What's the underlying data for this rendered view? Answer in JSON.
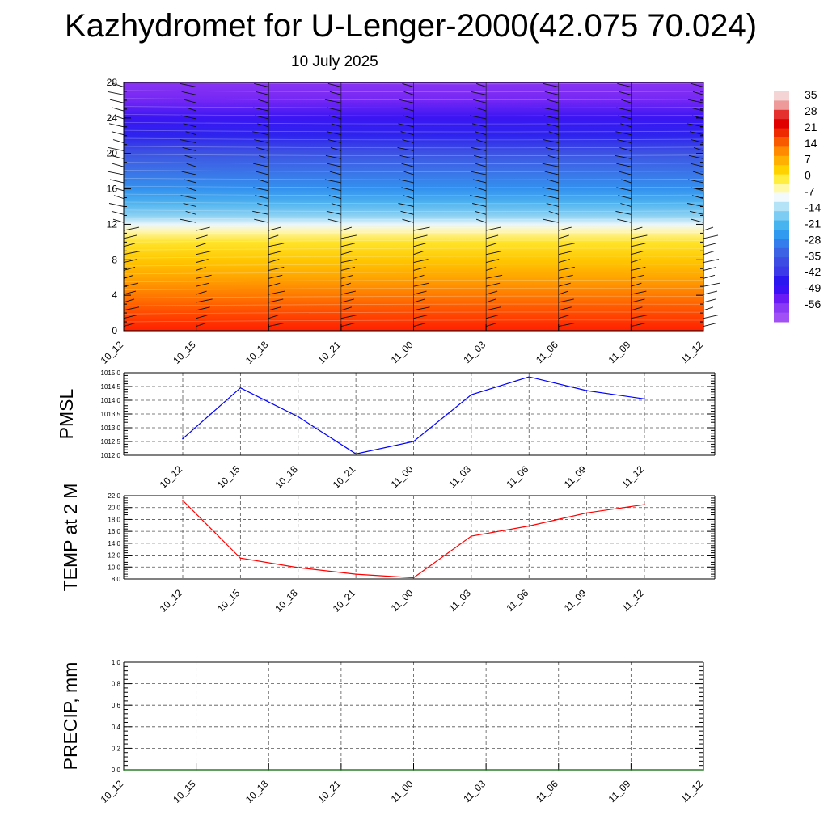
{
  "title": "Kazhydromet for U-Lenger-2000(42.075 70.024)",
  "subtitle": "10 July 2025",
  "colors": {
    "pmsl_line": "#0000ff",
    "temp_line": "#ff0000",
    "precip_line": "#006400",
    "grid": "#555555"
  },
  "chart_data": [
    {
      "type": "heatmap",
      "name": "cross-section",
      "x_ticks": [
        "10_12",
        "10_15",
        "10_18",
        "10_21",
        "11_00",
        "11_03",
        "11_06",
        "11_09",
        "11_12"
      ],
      "y_ticks": [
        0,
        4,
        8,
        12,
        16,
        20,
        24,
        28
      ],
      "ylim": [
        0,
        28
      ],
      "colorbar_labels": [
        "35",
        "28",
        "21",
        "14",
        "7",
        "0",
        "-7",
        "-14",
        "-21",
        "-28",
        "-35",
        "-42",
        "-49",
        "-56"
      ],
      "colorbar_colors": [
        "#f4d4d4",
        "#ee9a9a",
        "#e53030",
        "#e10000",
        "#ee2a00",
        "#f85a00",
        "#ff8a00",
        "#ffb000",
        "#ffd200",
        "#ffee40",
        "#fff9a8",
        "#f2fafd",
        "#b4e2f6",
        "#7cccf3",
        "#48b4ef",
        "#2f9af0",
        "#357ded",
        "#3c63e4",
        "#3d4de3",
        "#3b39e8",
        "#2b16f0",
        "#3b10f5",
        "#6a1bf5",
        "#8a3af5",
        "#a050f5"
      ],
      "profile": [
        {
          "z": 0,
          "color": "#ff2000"
        },
        {
          "z": 2,
          "color": "#ff4a00"
        },
        {
          "z": 4,
          "color": "#ff7a00"
        },
        {
          "z": 6,
          "color": "#ffa500"
        },
        {
          "z": 8,
          "color": "#ffc800"
        },
        {
          "z": 10,
          "color": "#ffe42a"
        },
        {
          "z": 11.2,
          "color": "#fff6b0"
        },
        {
          "z": 12,
          "color": "#e9f6fb"
        },
        {
          "z": 13,
          "color": "#8ad0f2"
        },
        {
          "z": 14.5,
          "color": "#4cb1ef"
        },
        {
          "z": 16,
          "color": "#3391ef"
        },
        {
          "z": 18,
          "color": "#3b72e8"
        },
        {
          "z": 20,
          "color": "#3d54e2"
        },
        {
          "z": 22,
          "color": "#2e24ee"
        },
        {
          "z": 24,
          "color": "#3a16f2"
        },
        {
          "z": 26,
          "color": "#7427f5"
        },
        {
          "z": 28,
          "color": "#8a34f3"
        }
      ]
    },
    {
      "type": "line",
      "ylabel": "PMSL",
      "x": [
        "10_12",
        "10_15",
        "10_18",
        "10_21",
        "11_00",
        "11_03",
        "11_06",
        "11_09",
        "11_12"
      ],
      "series": [
        {
          "values": [
            1012.6,
            1014.45,
            1013.4,
            1012.05,
            1012.5,
            1014.2,
            1014.85,
            1014.35,
            1014.05
          ]
        }
      ],
      "ylim": [
        1012.0,
        1015.0
      ],
      "y_ticks": [
        "1012.0",
        "1012.5",
        "1013.0",
        "1013.5",
        "1014.0",
        "1014.5",
        "1015.0"
      ],
      "grid": true
    },
    {
      "type": "line",
      "ylabel": "TEMP at 2 M",
      "x": [
        "10_12",
        "10_15",
        "10_18",
        "10_21",
        "11_00",
        "11_03",
        "11_06",
        "11_09",
        "11_12"
      ],
      "series": [
        {
          "values": [
            21.2,
            11.5,
            9.9,
            8.8,
            8.2,
            15.2,
            16.9,
            19.1,
            20.5
          ]
        }
      ],
      "ylim": [
        8.0,
        22.0
      ],
      "y_ticks": [
        "8.0",
        "10.0",
        "12.0",
        "14.0",
        "16.0",
        "18.0",
        "20.0",
        "22.0"
      ],
      "grid": true
    },
    {
      "type": "line",
      "ylabel": "PRECIP, mm",
      "x": [
        "10_12",
        "10_15",
        "10_18",
        "10_21",
        "11_00",
        "11_03",
        "11_06",
        "11_09",
        "11_12"
      ],
      "series": [
        {
          "values": [
            0,
            0,
            0,
            0,
            0,
            0,
            0,
            0,
            0
          ]
        }
      ],
      "ylim": [
        0.0,
        1.0
      ],
      "y_ticks": [
        "0.0",
        "0.2",
        "0.4",
        "0.6",
        "0.8",
        "1.0"
      ],
      "grid": true
    }
  ]
}
